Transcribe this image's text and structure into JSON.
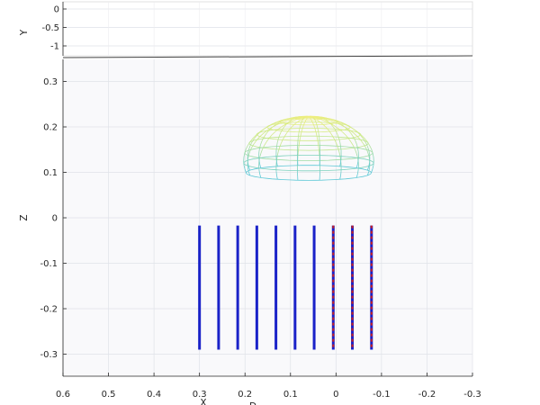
{
  "chart_data": {
    "type": "3d-mesh",
    "title": "",
    "view": "side elevation, y-axis foreshortened",
    "colors": {
      "axes_bg": "#f9f9fb",
      "grid": "#dfe2e8",
      "axis_line": "#262626",
      "pipe_blue": "#1a22c8",
      "pipe_red": "#cc1f1f",
      "mesh_top": "#f4ef7c",
      "mesh_mid": "#c8e88a",
      "mesh_bottom": "#5ec8d6"
    },
    "axes": {
      "y": {
        "label": "Y",
        "ticks": [
          0,
          -0.5,
          -1
        ],
        "tick_labels": [
          "0",
          "-0.5",
          "-1"
        ],
        "lim": [
          -1.3,
          0.05
        ]
      },
      "z": {
        "label": "Z",
        "ticks": [
          0.3,
          0.2,
          0.1,
          0,
          -0.1,
          -0.2,
          -0.3
        ],
        "tick_labels": [
          "0.3",
          "0.2",
          "0.1",
          "0",
          "-0.1",
          "-0.2",
          "-0.3"
        ],
        "lim": [
          -0.35,
          0.35
        ]
      },
      "x": {
        "label": "X",
        "ticks": [
          0.6,
          0.5,
          0.4,
          0.3,
          0.2,
          0.1,
          0,
          -0.1,
          -0.2,
          -0.3
        ],
        "tick_labels": [
          "0.6",
          "0.5",
          "0.4",
          "0.3",
          "0.2",
          "0.1",
          "0",
          "-0.1",
          "-0.2",
          "-0.3"
        ],
        "lim": [
          0.6,
          -0.3
        ],
        "reversed": true
      },
      "second_label": "D",
      "grid": true
    },
    "rods": {
      "x": [
        0.3,
        0.258,
        0.216,
        0.174,
        0.132,
        0.09,
        0.048,
        0.006,
        -0.036,
        -0.078
      ],
      "z_top": -0.017,
      "z_bottom": -0.29,
      "colors": [
        "blue",
        "blue",
        "blue",
        "blue",
        "blue",
        "blue",
        "blue",
        "mixed",
        "mixed",
        "mixed"
      ]
    },
    "dome": {
      "x_center": 0.06,
      "x_radius": 0.143,
      "z_base": 0.066,
      "z_equator": 0.125,
      "z_top": 0.222,
      "rings": 8,
      "meridians": 18
    }
  }
}
